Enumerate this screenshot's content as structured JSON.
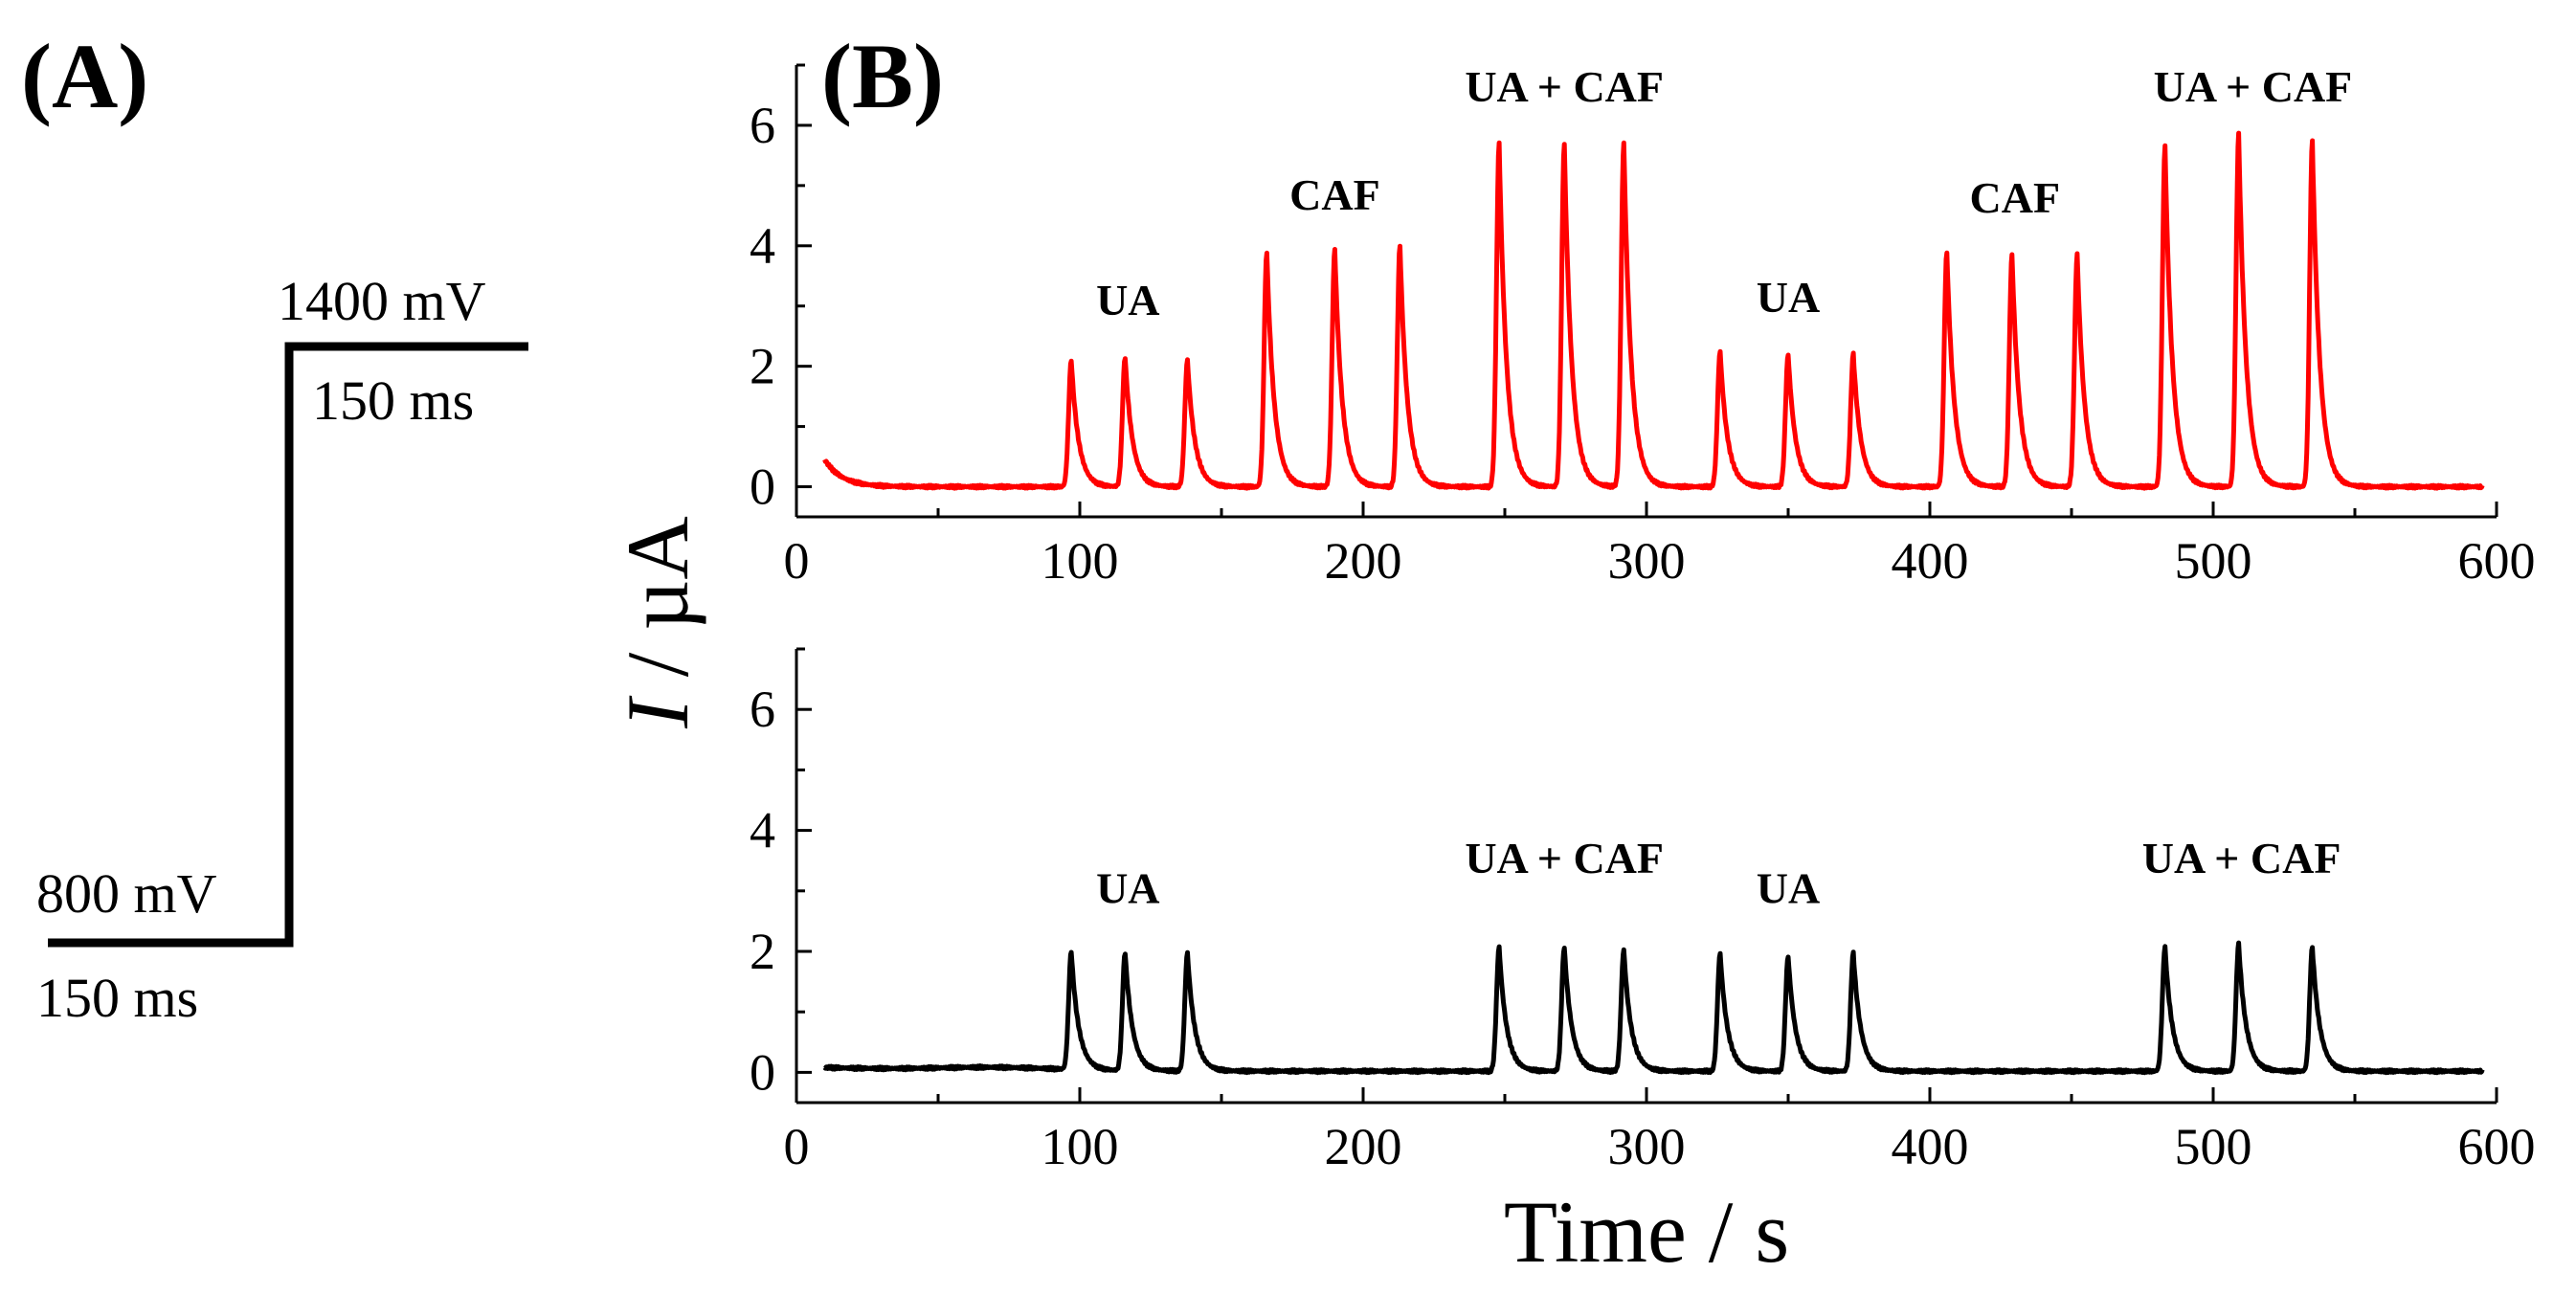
{
  "panel_a": {
    "label": "(A)",
    "waveform": {
      "low": {
        "potential": "800 mV",
        "duration": "150 ms"
      },
      "high": {
        "potential": "1400 mV",
        "duration": "150 ms"
      }
    }
  },
  "panel_b": {
    "label": "(B)"
  },
  "chart_data": [
    {
      "type": "line",
      "name": "top-trace",
      "color": "#ff0000",
      "xlim": [
        0,
        600
      ],
      "ylim": [
        -0.5,
        7
      ],
      "xticks": [
        0,
        100,
        200,
        300,
        400,
        500,
        600
      ],
      "yticks": [
        0,
        2,
        4,
        6
      ],
      "ylabel_italic": "I",
      "ylabel_rest": " / µA",
      "baseline_start": {
        "x": 10,
        "y": 0.45
      },
      "x_end": 595,
      "peaks": [
        {
          "x": 97,
          "y": 2.1
        },
        {
          "x": 116,
          "y": 2.15
        },
        {
          "x": 138,
          "y": 2.1
        },
        {
          "x": 166,
          "y": 3.9
        },
        {
          "x": 190,
          "y": 3.95
        },
        {
          "x": 213,
          "y": 4.0
        },
        {
          "x": 248,
          "y": 5.7
        },
        {
          "x": 271,
          "y": 5.7
        },
        {
          "x": 292,
          "y": 5.7
        },
        {
          "x": 326,
          "y": 2.25
        },
        {
          "x": 350,
          "y": 2.2
        },
        {
          "x": 373,
          "y": 2.2
        },
        {
          "x": 406,
          "y": 3.9
        },
        {
          "x": 429,
          "y": 3.85
        },
        {
          "x": 452,
          "y": 3.85
        },
        {
          "x": 483,
          "y": 5.65
        },
        {
          "x": 509,
          "y": 5.85
        },
        {
          "x": 535,
          "y": 5.75
        }
      ],
      "annotations": [
        {
          "text": "UA",
          "x": 117,
          "y": 2.85
        },
        {
          "text": "CAF",
          "x": 190,
          "y": 4.6
        },
        {
          "text": "UA + CAF",
          "x": 271,
          "y": 6.4
        },
        {
          "text": "UA",
          "x": 350,
          "y": 2.9
        },
        {
          "text": "CAF",
          "x": 430,
          "y": 4.55
        },
        {
          "text": "UA + CAF",
          "x": 514,
          "y": 6.4
        }
      ]
    },
    {
      "type": "line",
      "name": "bottom-trace",
      "color": "#000000",
      "xlim": [
        0,
        600
      ],
      "ylim": [
        -0.5,
        7
      ],
      "xticks": [
        0,
        100,
        200,
        300,
        400,
        500,
        600
      ],
      "yticks": [
        0,
        2,
        4,
        6
      ],
      "xlabel": "Time / s",
      "baseline_start": {
        "x": 10,
        "y": 0.08
      },
      "x_end": 595,
      "peaks": [
        {
          "x": 97,
          "y": 1.95
        },
        {
          "x": 116,
          "y": 1.95
        },
        {
          "x": 138,
          "y": 1.95
        },
        {
          "x": 248,
          "y": 2.05
        },
        {
          "x": 271,
          "y": 2.05
        },
        {
          "x": 292,
          "y": 2.0
        },
        {
          "x": 326,
          "y": 1.95
        },
        {
          "x": 350,
          "y": 1.9
        },
        {
          "x": 373,
          "y": 1.95
        },
        {
          "x": 483,
          "y": 2.05
        },
        {
          "x": 509,
          "y": 2.1
        },
        {
          "x": 535,
          "y": 2.05
        }
      ],
      "annotations": [
        {
          "text": "UA",
          "x": 117,
          "y": 2.8
        },
        {
          "text": "UA + CAF",
          "x": 271,
          "y": 3.3
        },
        {
          "text": "UA",
          "x": 350,
          "y": 2.8
        },
        {
          "text": "UA + CAF",
          "x": 510,
          "y": 3.3
        }
      ]
    }
  ]
}
